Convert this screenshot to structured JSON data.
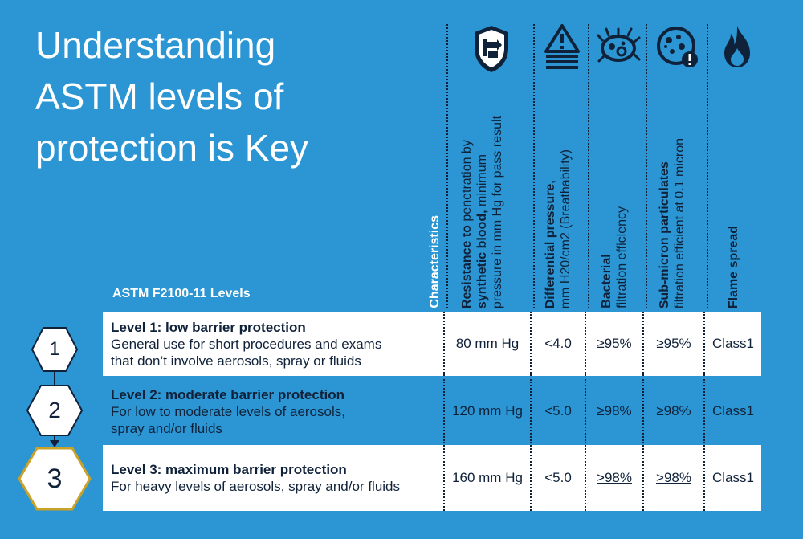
{
  "title_lines": [
    "Understanding",
    "ASTM levels of",
    "protection is Key"
  ],
  "levels_label": "ASTM F2100-11 Levels",
  "columns": [
    {
      "icon": "shield-hand-icon",
      "bold": "Characteristics",
      "rest": "",
      "rest2": ""
    },
    {
      "icon": "shield-hand-icon",
      "bold": "Resistance to",
      "rest": " penetration by",
      "bold2": "synthetic blood,",
      "rest2": " minimum",
      "line3": "pressure in mm Hg for pass result"
    },
    {
      "icon": "warning-layers-icon",
      "bold": "Differential pressure,",
      "line2": "mm H20/cm2 (Breathability)"
    },
    {
      "icon": "bacteria-icon",
      "bold": "Bacterial",
      "line2": "filtration efficiency"
    },
    {
      "icon": "particle-icon",
      "bold": "Sub-micron particulates",
      "line2": "filtration efficient at 0.1 micron"
    },
    {
      "icon": "flame-icon",
      "bold": "Flame spread",
      "line2": ""
    }
  ],
  "rows": [
    {
      "number": "1",
      "title": "Level 1: low barrier protection",
      "desc1": "General use for short procedures and exams",
      "desc2": "that don’t involve aerosols, spray or fluids",
      "blood": "80 mm Hg",
      "pressure": "<4.0",
      "bacterial": "≥95%",
      "particulate": "≥95%",
      "flame": "Class1"
    },
    {
      "number": "2",
      "title": "Level 2: moderate barrier protection",
      "desc1": "For low to moderate levels of aerosols,",
      "desc2": "spray and/or fluids",
      "blood": "120 mm Hg",
      "pressure": "<5.0",
      "bacterial": "≥98%",
      "particulate": "≥98%",
      "flame": "Class1"
    },
    {
      "number": "3",
      "title": "Level 3: maximum barrier protection",
      "desc1": "For heavy levels of aerosols, spray and/or fluids",
      "desc2": "",
      "blood": "160 mm Hg",
      "pressure": "<5.0",
      "bacterial": ">98%",
      "particulate": ">98%",
      "flame": "Class1"
    }
  ],
  "colors": {
    "background": "#2b96d3",
    "dark": "#10223a",
    "white": "#ffffff",
    "gold": "#c9a227"
  }
}
